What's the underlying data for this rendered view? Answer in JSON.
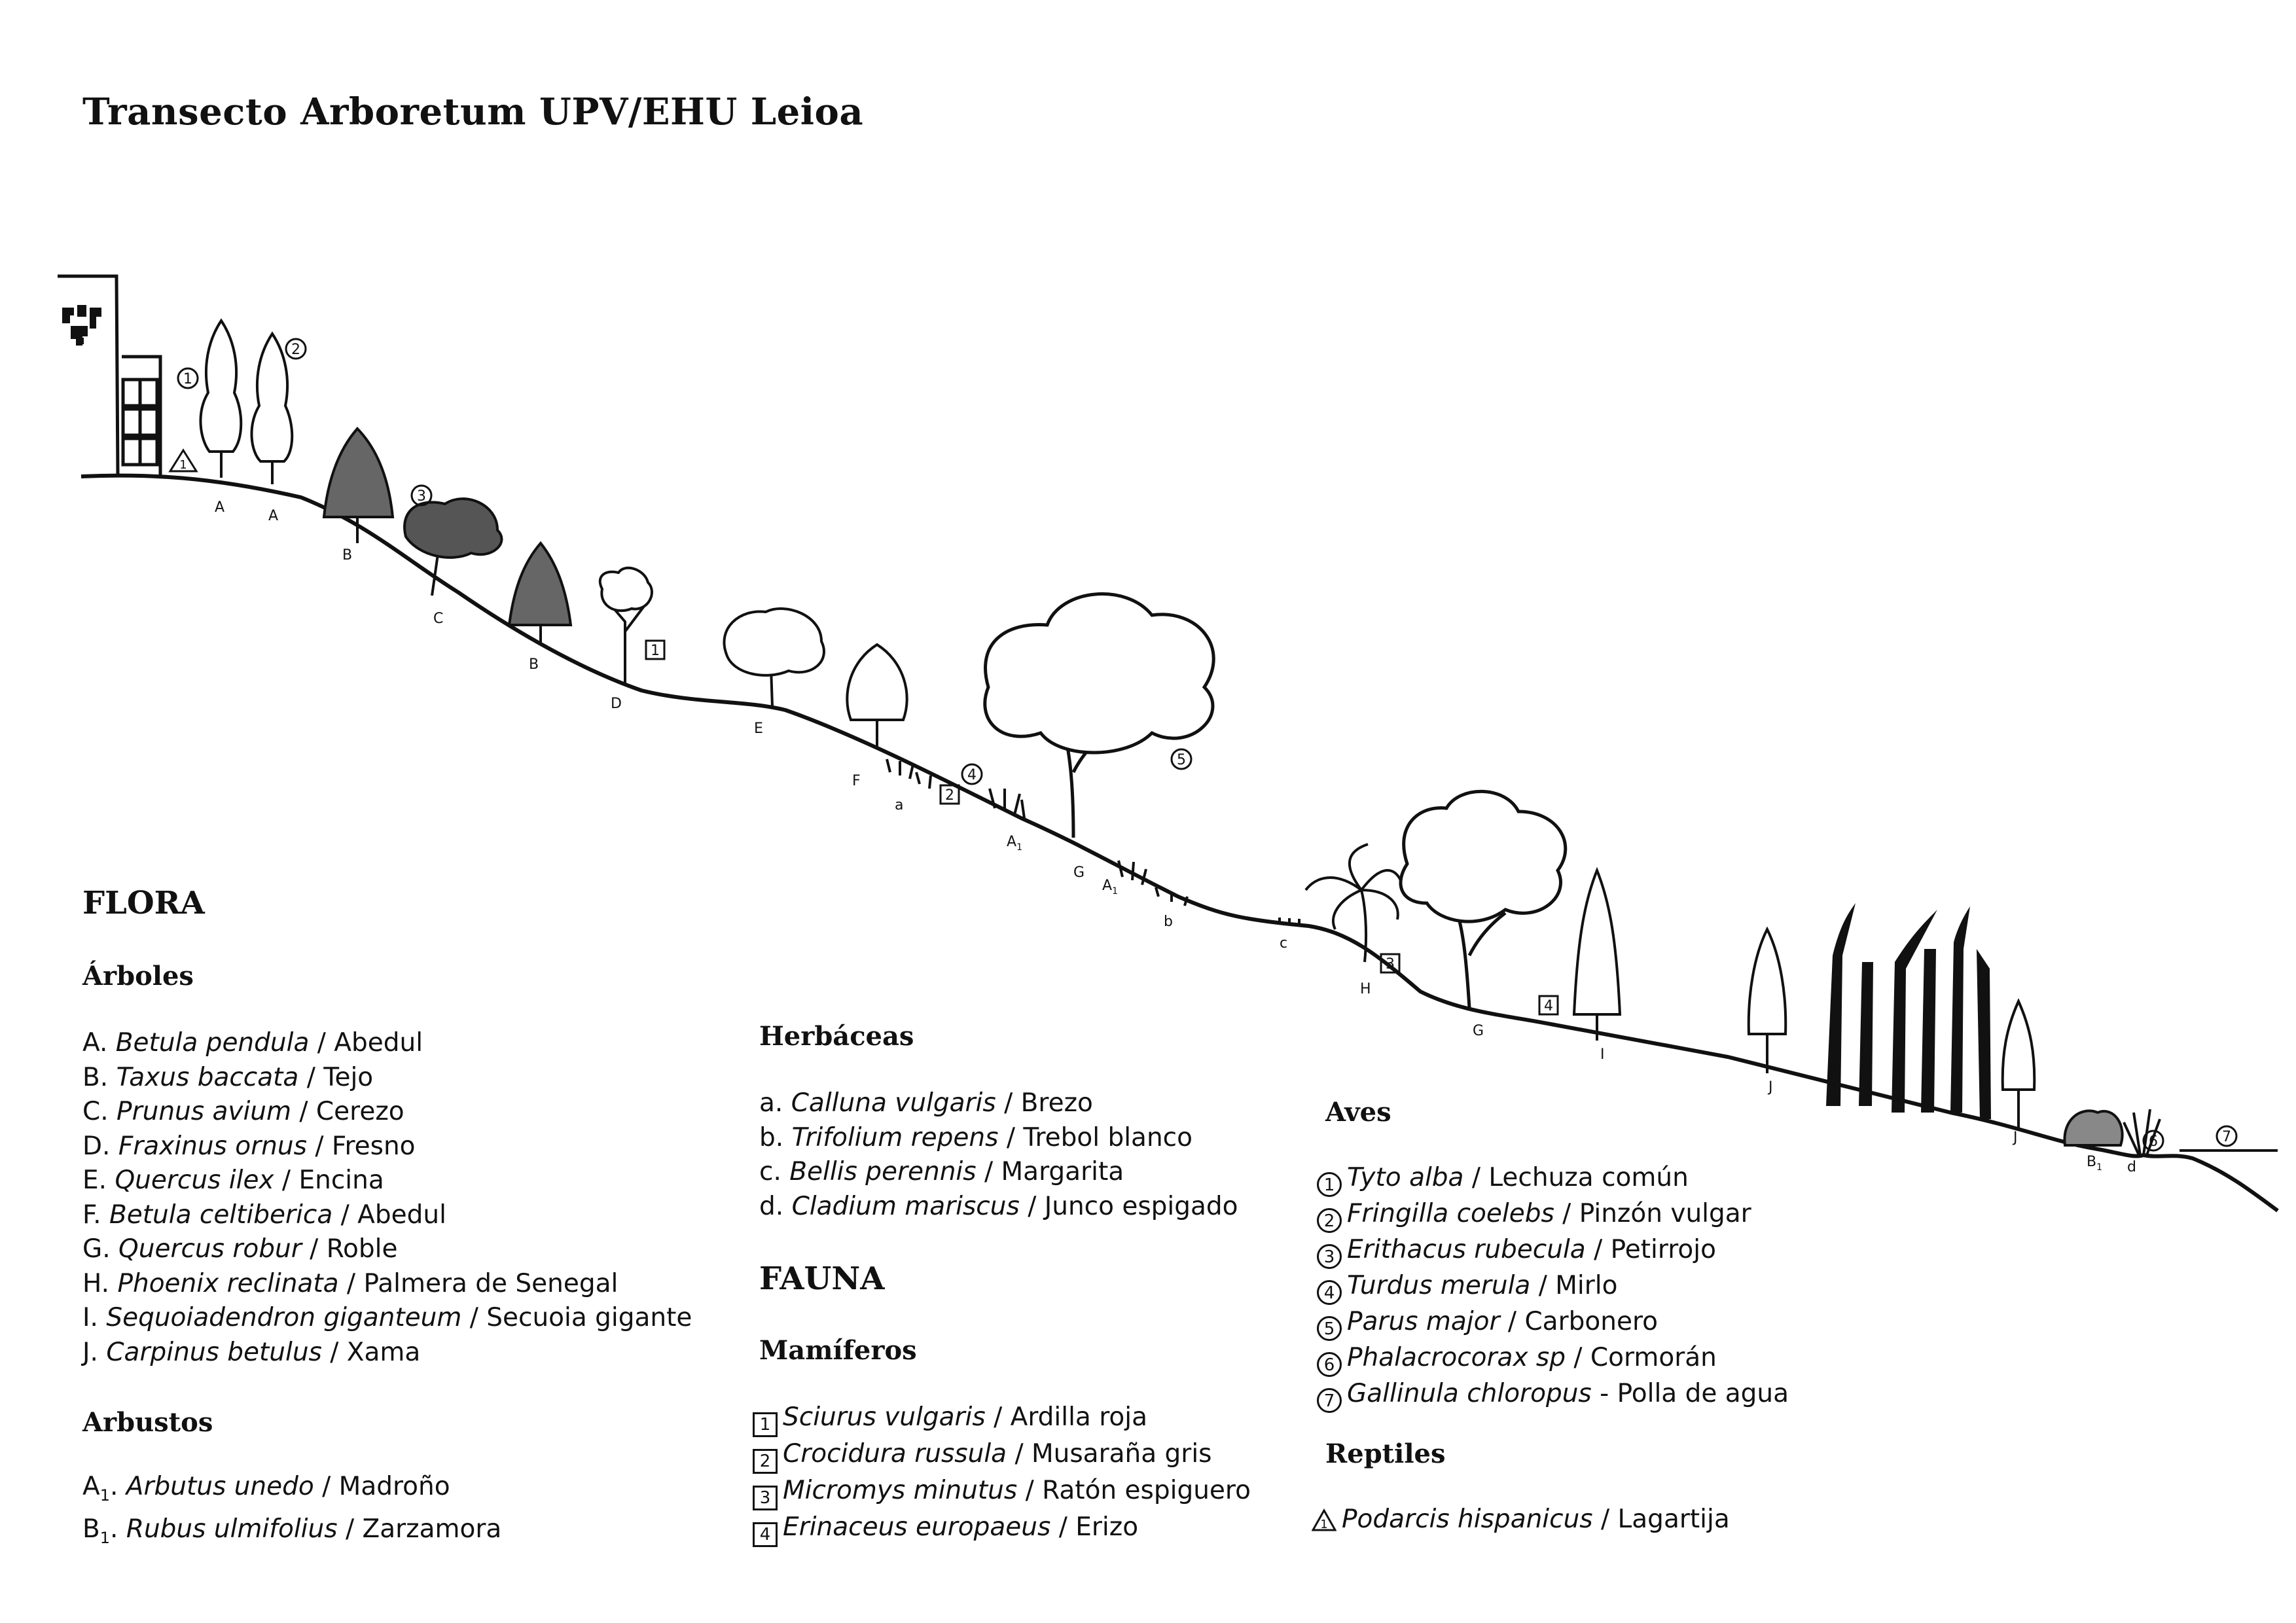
{
  "title": "Transecto Arboretum UPV/EHU Leioa",
  "diagram_labels": {
    "A1": "A",
    "A2": "A",
    "B1": "B",
    "C1": "C",
    "B2": "B",
    "D1": "D",
    "E1": "E",
    "F1": "F",
    "a1": "a",
    "Asub1": "A",
    "Asub1_n": "1",
    "G1": "G",
    "Asub2": "A",
    "Asub2_n": "1",
    "b1": "b",
    "c1": "c",
    "H1": "H",
    "G2": "G",
    "I1": "I",
    "J1": "J",
    "J2": "J",
    "Bsub1": "B",
    "Bsub1_n": "1",
    "d1": "d",
    "bird1": "1",
    "bird2": "2",
    "bird3": "3",
    "bird4": "4",
    "bird5": "5",
    "bird6": "6",
    "bird7": "7",
    "mam1": "1",
    "mam2": "2",
    "mam3": "3",
    "mam4": "4",
    "rep1": "1"
  },
  "flora": {
    "heading": "FLORA",
    "arboles": {
      "heading": "Árboles",
      "items": [
        {
          "code": "A.",
          "sci": "Betula pendula",
          "common": " / Abedul"
        },
        {
          "code": "B.",
          "sci": "Taxus baccata",
          "common": " / Tejo"
        },
        {
          "code": "C.",
          "sci": "Prunus avium",
          "common": " / Cerezo"
        },
        {
          "code": "D.",
          "sci": "Fraxinus ornus",
          "common": " / Fresno"
        },
        {
          "code": "E.",
          "sci": "Quercus ilex",
          "common": " / Encina"
        },
        {
          "code": "F.",
          "sci": "Betula celtiberica",
          "common": " / Abedul"
        },
        {
          "code": "G.",
          "sci": "Quercus robur",
          "common": " / Roble"
        },
        {
          "code": "H.",
          "sci": "Phoenix reclinata",
          "common": " / Palmera de Senegal"
        },
        {
          "code": "I.",
          "sci": "Sequoiadendron giganteum",
          "common": " / Secuoia gigante"
        },
        {
          "code": "J.",
          "sci": "Carpinus betulus",
          "common": " / Xama"
        }
      ]
    },
    "arbustos": {
      "heading": "Arbustos",
      "items": [
        {
          "code": "A",
          "sub": "1",
          "dot": ".",
          "sci": "Arbutus unedo",
          "common": " / Madroño"
        },
        {
          "code": "B",
          "sub": "1",
          "dot": ".",
          "sci": "Rubus ulmifolius",
          "common": " / Zarzamora"
        }
      ]
    },
    "herbaceas": {
      "heading": "Herbáceas",
      "items": [
        {
          "code": "a.",
          "sci": "Calluna vulgaris",
          "common": " / Brezo"
        },
        {
          "code": "b.",
          "sci": "Trifolium repens",
          "common": " / Trebol blanco"
        },
        {
          "code": "c.",
          "sci": "Bellis perennis",
          "common": " / Margarita"
        },
        {
          "code": "d.",
          "sci": "Cladium mariscus",
          "common": " / Junco espigado"
        }
      ]
    }
  },
  "fauna": {
    "heading": "FAUNA",
    "mamiferos": {
      "heading": "Mamíferos",
      "items": [
        {
          "num": "1",
          "sci": "Sciurus vulgaris",
          "common": " / Ardilla roja"
        },
        {
          "num": "2",
          "sci": "Crocidura russula",
          "common": " / Musaraña gris"
        },
        {
          "num": "3",
          "sci": "Micromys minutus",
          "common": " / Ratón espiguero"
        },
        {
          "num": "4",
          "sci": "Erinaceus europaeus",
          "common": " / Erizo"
        }
      ]
    },
    "aves": {
      "heading": "Aves",
      "items": [
        {
          "num": "1",
          "sci": "Tyto alba",
          "common": " / Lechuza común"
        },
        {
          "num": "2",
          "sci": "Fringilla coelebs",
          "common": " / Pinzón vulgar"
        },
        {
          "num": "3",
          "sci": "Erithacus rubecula",
          "common": " / Petirrojo"
        },
        {
          "num": "4",
          "sci": "Turdus merula",
          "common": " / Mirlo"
        },
        {
          "num": "5",
          "sci": "Parus major",
          "common": " / Carbonero"
        },
        {
          "num": "6",
          "sci": "Phalacrocorax sp",
          "common": " / Cormorán"
        },
        {
          "num": "7",
          "sci": "Gallinula chloropus",
          "common": " - Polla de agua"
        }
      ]
    },
    "reptiles": {
      "heading": "Reptiles",
      "items": [
        {
          "num": "1",
          "sci": "Podarcis hispanicus",
          "common": " / Lagartija"
        }
      ]
    }
  }
}
